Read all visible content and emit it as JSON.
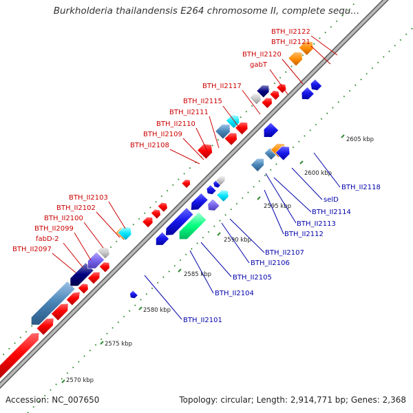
{
  "header": {
    "title": "Burkholderia thailandensis E264 chromosome II, complete sequ..."
  },
  "footer": {
    "accession": "Accession: NC_007650",
    "topology": "Topology: circular; Length: 2,914,771 bp; Genes: 2,368"
  },
  "colors": {
    "backbone": "#9a9a9a",
    "tick_green": "#2e8b2e",
    "label_red": "#cc0000",
    "label_blue": "#0000aa",
    "gene_red": "#ff0000",
    "gene_blue": "#1a1aee",
    "gene_steel": "#4682b4",
    "gene_slate": "#7b68ee",
    "gene_navy": "#000080",
    "gene_cyan": "#00e5ff",
    "gene_orange": "#ff8c00",
    "gene_spring": "#00ff7f",
    "gene_gray": "#c8c8c8"
  },
  "kbp_markers": [
    {
      "label": "2570 kbp",
      "pos": 2570
    },
    {
      "label": "2575 kbp",
      "pos": 2575
    },
    {
      "label": "2580 kbp",
      "pos": 2580
    },
    {
      "label": "2585 kbp",
      "pos": 2585
    },
    {
      "label": "2590 kbp",
      "pos": 2590
    },
    {
      "label": "2595 kbp",
      "pos": 2595
    },
    {
      "label": "2600 kbp",
      "pos": 2600
    },
    {
      "label": "2605 kbp",
      "pos": 2605
    }
  ],
  "gene_labels_red": [
    {
      "label": "BTH_II2122"
    },
    {
      "label": "BTH_II2121"
    },
    {
      "label": "BTH_II2120"
    },
    {
      "label": "gabT"
    },
    {
      "label": "BTH_II2117"
    },
    {
      "label": "BTH_II2115"
    },
    {
      "label": "BTH_II2111"
    },
    {
      "label": "BTH_II2110"
    },
    {
      "label": "BTH_II2109"
    },
    {
      "label": "BTH_II2108"
    },
    {
      "label": "BTH_II2103"
    },
    {
      "label": "BTH_II2102"
    },
    {
      "label": "BTH_II2100"
    },
    {
      "label": "BTH_II2099"
    },
    {
      "label": "fabD-2"
    },
    {
      "label": "BTH_II2097"
    }
  ],
  "gene_labels_blue": [
    {
      "label": "BTH_II2118"
    },
    {
      "label": "selD"
    },
    {
      "label": "BTH_II2114"
    },
    {
      "label": "BTH_II2113"
    },
    {
      "label": "BTH_II2112"
    },
    {
      "label": "BTH_II2107"
    },
    {
      "label": "BTH_II2106"
    },
    {
      "label": "BTH_II2105"
    },
    {
      "label": "BTH_II2104"
    },
    {
      "label": "BTH_II2101"
    }
  ]
}
